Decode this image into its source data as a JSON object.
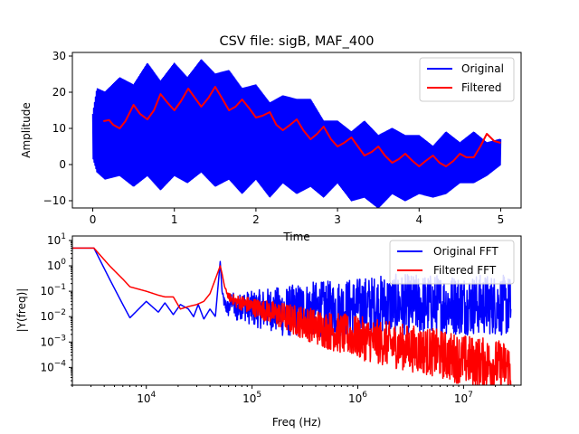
{
  "chart_data": [
    {
      "type": "line",
      "title": "CSV file: sigB, MAF_400",
      "xlabel": "Time",
      "ylabel": "Amplitude",
      "xlim": [
        -0.25,
        5.25
      ],
      "ylim": [
        -12,
        31
      ],
      "xticks": [
        0,
        1,
        2,
        3,
        4,
        5
      ],
      "yticks": [
        -10,
        0,
        10,
        20,
        30
      ],
      "legend": "top-right",
      "series": [
        {
          "name": "Original",
          "color": "#0000ff",
          "style": "envelope",
          "x": [
            0.0,
            0.05,
            0.15,
            0.33,
            0.5,
            0.67,
            0.83,
            1.0,
            1.16,
            1.33,
            1.5,
            1.67,
            1.83,
            2.0,
            2.17,
            2.33,
            2.5,
            2.67,
            2.83,
            3.0,
            3.17,
            3.33,
            3.5,
            3.67,
            3.83,
            4.0,
            4.17,
            4.33,
            4.5,
            4.67,
            4.83,
            5.0
          ],
          "upper": [
            14,
            21,
            20,
            24,
            22,
            28,
            23,
            28,
            24,
            29,
            25,
            26,
            21,
            22,
            17,
            19,
            18,
            18,
            12,
            12,
            9,
            12,
            8,
            10,
            8,
            8,
            5,
            9,
            6,
            9,
            6,
            7
          ],
          "lower": [
            2,
            -2,
            -4,
            -3,
            -6,
            -3,
            -7,
            -3,
            -5,
            -2,
            -6,
            -4,
            -8,
            -4,
            -9,
            -5,
            -8,
            -6,
            -9,
            -5,
            -10,
            -9,
            -12,
            -8,
            -10,
            -8,
            -9,
            -8,
            -5,
            -5,
            -3,
            0
          ]
        },
        {
          "name": "Filtered",
          "color": "#ff0000",
          "style": "line",
          "x": [
            0.13,
            0.2,
            0.25,
            0.33,
            0.4,
            0.5,
            0.58,
            0.67,
            0.75,
            0.83,
            0.92,
            1.0,
            1.08,
            1.17,
            1.25,
            1.33,
            1.42,
            1.5,
            1.58,
            1.67,
            1.75,
            1.83,
            1.92,
            2.0,
            2.08,
            2.17,
            2.25,
            2.33,
            2.42,
            2.5,
            2.58,
            2.67,
            2.75,
            2.83,
            2.92,
            3.0,
            3.08,
            3.17,
            3.25,
            3.33,
            3.42,
            3.5,
            3.58,
            3.67,
            3.75,
            3.83,
            3.92,
            4.0,
            4.08,
            4.17,
            4.25,
            4.33,
            4.42,
            4.5,
            4.58,
            4.67,
            4.75,
            4.83,
            4.92,
            5.0
          ],
          "values": [
            12,
            12.3,
            11,
            10,
            12,
            16.5,
            14,
            12.5,
            15,
            19.5,
            17,
            15,
            17.5,
            21,
            18.5,
            16,
            18.5,
            21.5,
            18.5,
            15,
            16,
            18,
            15.5,
            13,
            13.5,
            14.5,
            11,
            9.5,
            11,
            12.5,
            9.5,
            7,
            8.5,
            10.5,
            7,
            5,
            6,
            7.5,
            5,
            2.5,
            3.5,
            5,
            2.5,
            0.5,
            1.5,
            3,
            1,
            -0.5,
            1,
            2.5,
            0.5,
            -0.5,
            1,
            3,
            2,
            2,
            5,
            8.5,
            6.5,
            6
          ]
        }
      ]
    },
    {
      "type": "line",
      "title": "",
      "xlabel": "Freq (Hz)",
      "ylabel": "|Y(freq)|",
      "xscale": "log",
      "yscale": "log",
      "xlim": [
        2000,
        35000000
      ],
      "ylim": [
        2e-05,
        15
      ],
      "xticks": [
        10000,
        100000,
        1000000,
        10000000
      ],
      "xtick_labels": [
        "10^4",
        "10^5",
        "10^6",
        "10^7"
      ],
      "yticks": [
        0.0001,
        0.001,
        0.01,
        0.1,
        1,
        10
      ],
      "ytick_labels": [
        "10^-4",
        "10^-3",
        "10^-2",
        "10^-1",
        "10^0",
        "10^1"
      ],
      "legend": "top-right",
      "series": [
        {
          "name": "Original FFT",
          "color": "#0000ff",
          "x": [
            2000,
            3200,
            4500,
            6000,
            7000,
            10000,
            13000,
            15000,
            18000,
            21000,
            25000,
            28000,
            31000,
            35000,
            40000,
            45000,
            50000,
            52000,
            55000,
            60000,
            65000,
            70000,
            80000,
            100000,
            150000,
            200000,
            300000,
            500000,
            1000000,
            2000000,
            5000000,
            10000000,
            20000000,
            28000000
          ],
          "values": [
            5,
            5,
            0.3,
            0.03,
            0.009,
            0.04,
            0.015,
            0.035,
            0.012,
            0.03,
            0.02,
            0.01,
            0.03,
            0.008,
            0.02,
            0.01,
            1.5,
            0.1,
            0.03,
            0.02,
            0.05,
            0.015,
            0.03,
            0.02,
            0.02,
            0.015,
            0.02,
            0.02,
            0.025,
            0.03,
            0.03,
            0.03,
            0.03,
            0.025
          ],
          "noise": [
            0,
            0,
            0,
            0,
            0,
            0,
            0,
            0,
            0,
            0,
            0,
            0,
            0,
            0,
            0,
            0,
            0,
            0,
            0.3,
            0.35,
            0.4,
            0.45,
            0.55,
            0.7,
            0.85,
            1.0,
            1.05,
            1.1,
            1.15,
            1.2,
            1.2,
            1.2,
            1.2,
            1.2
          ]
        },
        {
          "name": "Filtered FFT",
          "color": "#ff0000",
          "x": [
            2000,
            3200,
            4500,
            6000,
            7000,
            10000,
            13000,
            15000,
            18000,
            21000,
            25000,
            30000,
            35000,
            40000,
            45000,
            50000,
            52000,
            55000,
            60000,
            65000,
            70000,
            80000,
            100000,
            150000,
            200000,
            300000,
            500000,
            1000000,
            2000000,
            5000000,
            10000000,
            20000000,
            28000000
          ],
          "values": [
            5,
            5,
            1,
            0.3,
            0.15,
            0.1,
            0.07,
            0.06,
            0.06,
            0.02,
            0.025,
            0.03,
            0.04,
            0.08,
            0.3,
            1.0,
            0.5,
            0.15,
            0.06,
            0.05,
            0.04,
            0.035,
            0.025,
            0.015,
            0.01,
            0.006,
            0.003,
            0.0015,
            0.0008,
            0.0004,
            0.0002,
            0.00013,
            0.0001
          ],
          "noise": [
            0,
            0,
            0,
            0,
            0,
            0,
            0,
            0,
            0,
            0,
            0,
            0,
            0,
            0,
            0,
            0,
            0,
            0,
            0.15,
            0.2,
            0.25,
            0.3,
            0.35,
            0.45,
            0.55,
            0.65,
            0.75,
            0.85,
            0.9,
            0.95,
            1.0,
            1.0,
            1.0
          ]
        }
      ]
    }
  ]
}
